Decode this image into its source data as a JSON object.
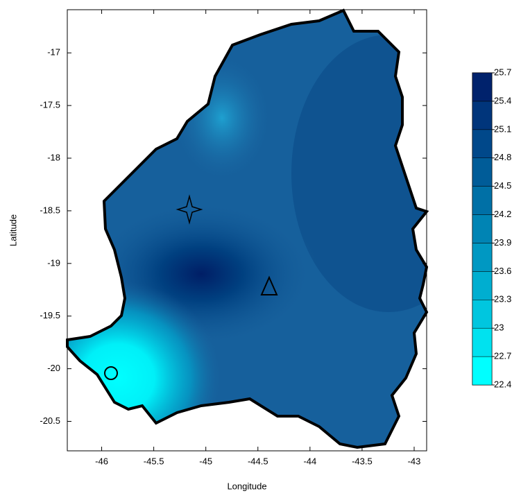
{
  "chart_data": {
    "type": "contour",
    "x_label": "Longitude",
    "y_label": "Latitude",
    "xlim": [
      -46.33,
      -42.88
    ],
    "ylim": [
      -20.78,
      -16.59
    ],
    "xticks": [
      -46,
      -45.5,
      -45,
      -44.5,
      -44,
      -43.5,
      -43
    ],
    "yticks": [
      -17,
      -17.5,
      -18,
      -18.5,
      -19,
      -19.5,
      -20,
      -20.5
    ],
    "colorbar": {
      "levels": [
        22.4,
        22.7,
        23,
        23.3,
        23.6,
        23.9,
        24.2,
        24.5,
        24.8,
        25.1,
        25.4,
        25.7
      ],
      "colors": [
        "#00ffff",
        "#00e2ef",
        "#00c6df",
        "#00aed0",
        "#0098c2",
        "#0084b4",
        "#0070a6",
        "#005c98",
        "#00488a",
        "#00357b",
        "#00226c"
      ]
    }
  }
}
